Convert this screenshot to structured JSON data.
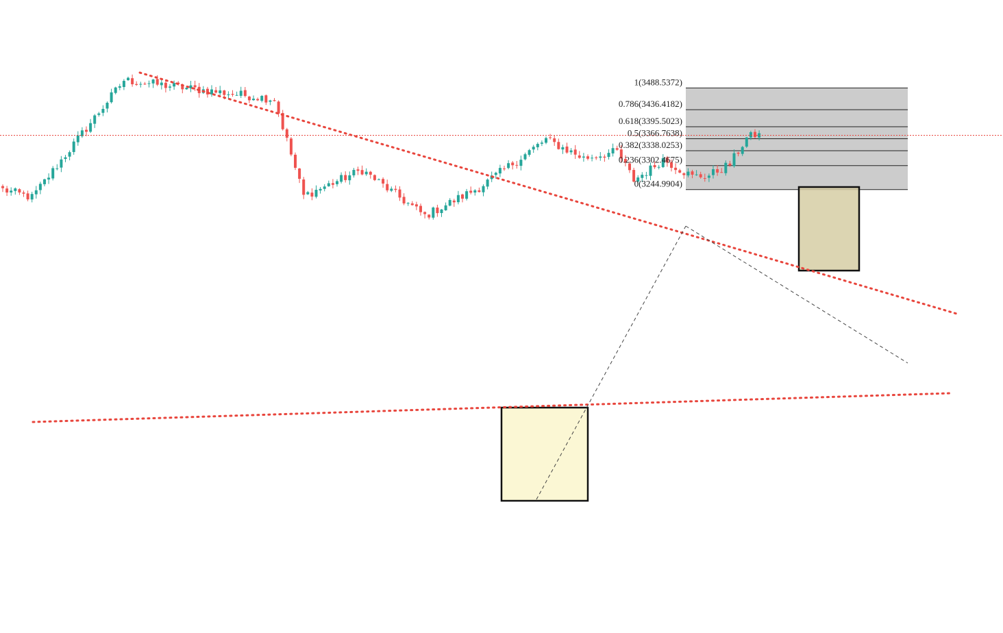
{
  "colors": {
    "up": "#26a69a",
    "down": "#ef5350",
    "trendline": "#e8453c",
    "fib_zone": "#cccccc",
    "fib_line": "#222222",
    "highlight_fill": "#fbf7d4",
    "highlight_stroke": "#111111",
    "dashed": "#444444"
  },
  "chart_data": {
    "type": "candlestick",
    "title": "",
    "ylim": [
      3148,
      3530
    ],
    "fib_levels": [
      {
        "ratio": 1,
        "price": 3488.5372,
        "label": "1(3488.5372)"
      },
      {
        "ratio": 0.786,
        "price": 3436.4182,
        "label": "0.786(3436.4182)"
      },
      {
        "ratio": 0.618,
        "price": 3395.5023,
        "label": "0.618(3395.5023)"
      },
      {
        "ratio": 0.5,
        "price": 3366.7638,
        "label": "0.5(3366.7638)"
      },
      {
        "ratio": 0.382,
        "price": 3338.0253,
        "label": "0.382(3338.0253)"
      },
      {
        "ratio": 0.236,
        "price": 3302.4675,
        "label": "0.236(3302.4675)"
      },
      {
        "ratio": 0,
        "price": 3244.9904,
        "label": "0(3244.9904)"
      }
    ],
    "horizontal_line_price": 3375,
    "swing_points": [
      {
        "bar": 0,
        "price": 3245
      },
      {
        "bar": 7,
        "price": 3226
      },
      {
        "bar": 29,
        "price": 3507
      },
      {
        "bar": 65,
        "price": 3462
      },
      {
        "bar": 72,
        "price": 3230
      },
      {
        "bar": 86,
        "price": 3292
      },
      {
        "bar": 101,
        "price": 3182
      },
      {
        "bar": 114,
        "price": 3250
      },
      {
        "bar": 130,
        "price": 3365
      },
      {
        "bar": 139,
        "price": 3320
      },
      {
        "bar": 147,
        "price": 3336
      },
      {
        "bar": 151,
        "price": 3268
      },
      {
        "bar": 155,
        "price": 3294
      },
      {
        "bar": 158,
        "price": 3318
      },
      {
        "bar": 165,
        "price": 3276
      },
      {
        "bar": 169,
        "price": 3279
      },
      {
        "bar": 174,
        "price": 3306
      },
      {
        "bar": 178,
        "price": 3368
      },
      {
        "bar": 181,
        "price": 3380
      }
    ],
    "bars": 182
  }
}
